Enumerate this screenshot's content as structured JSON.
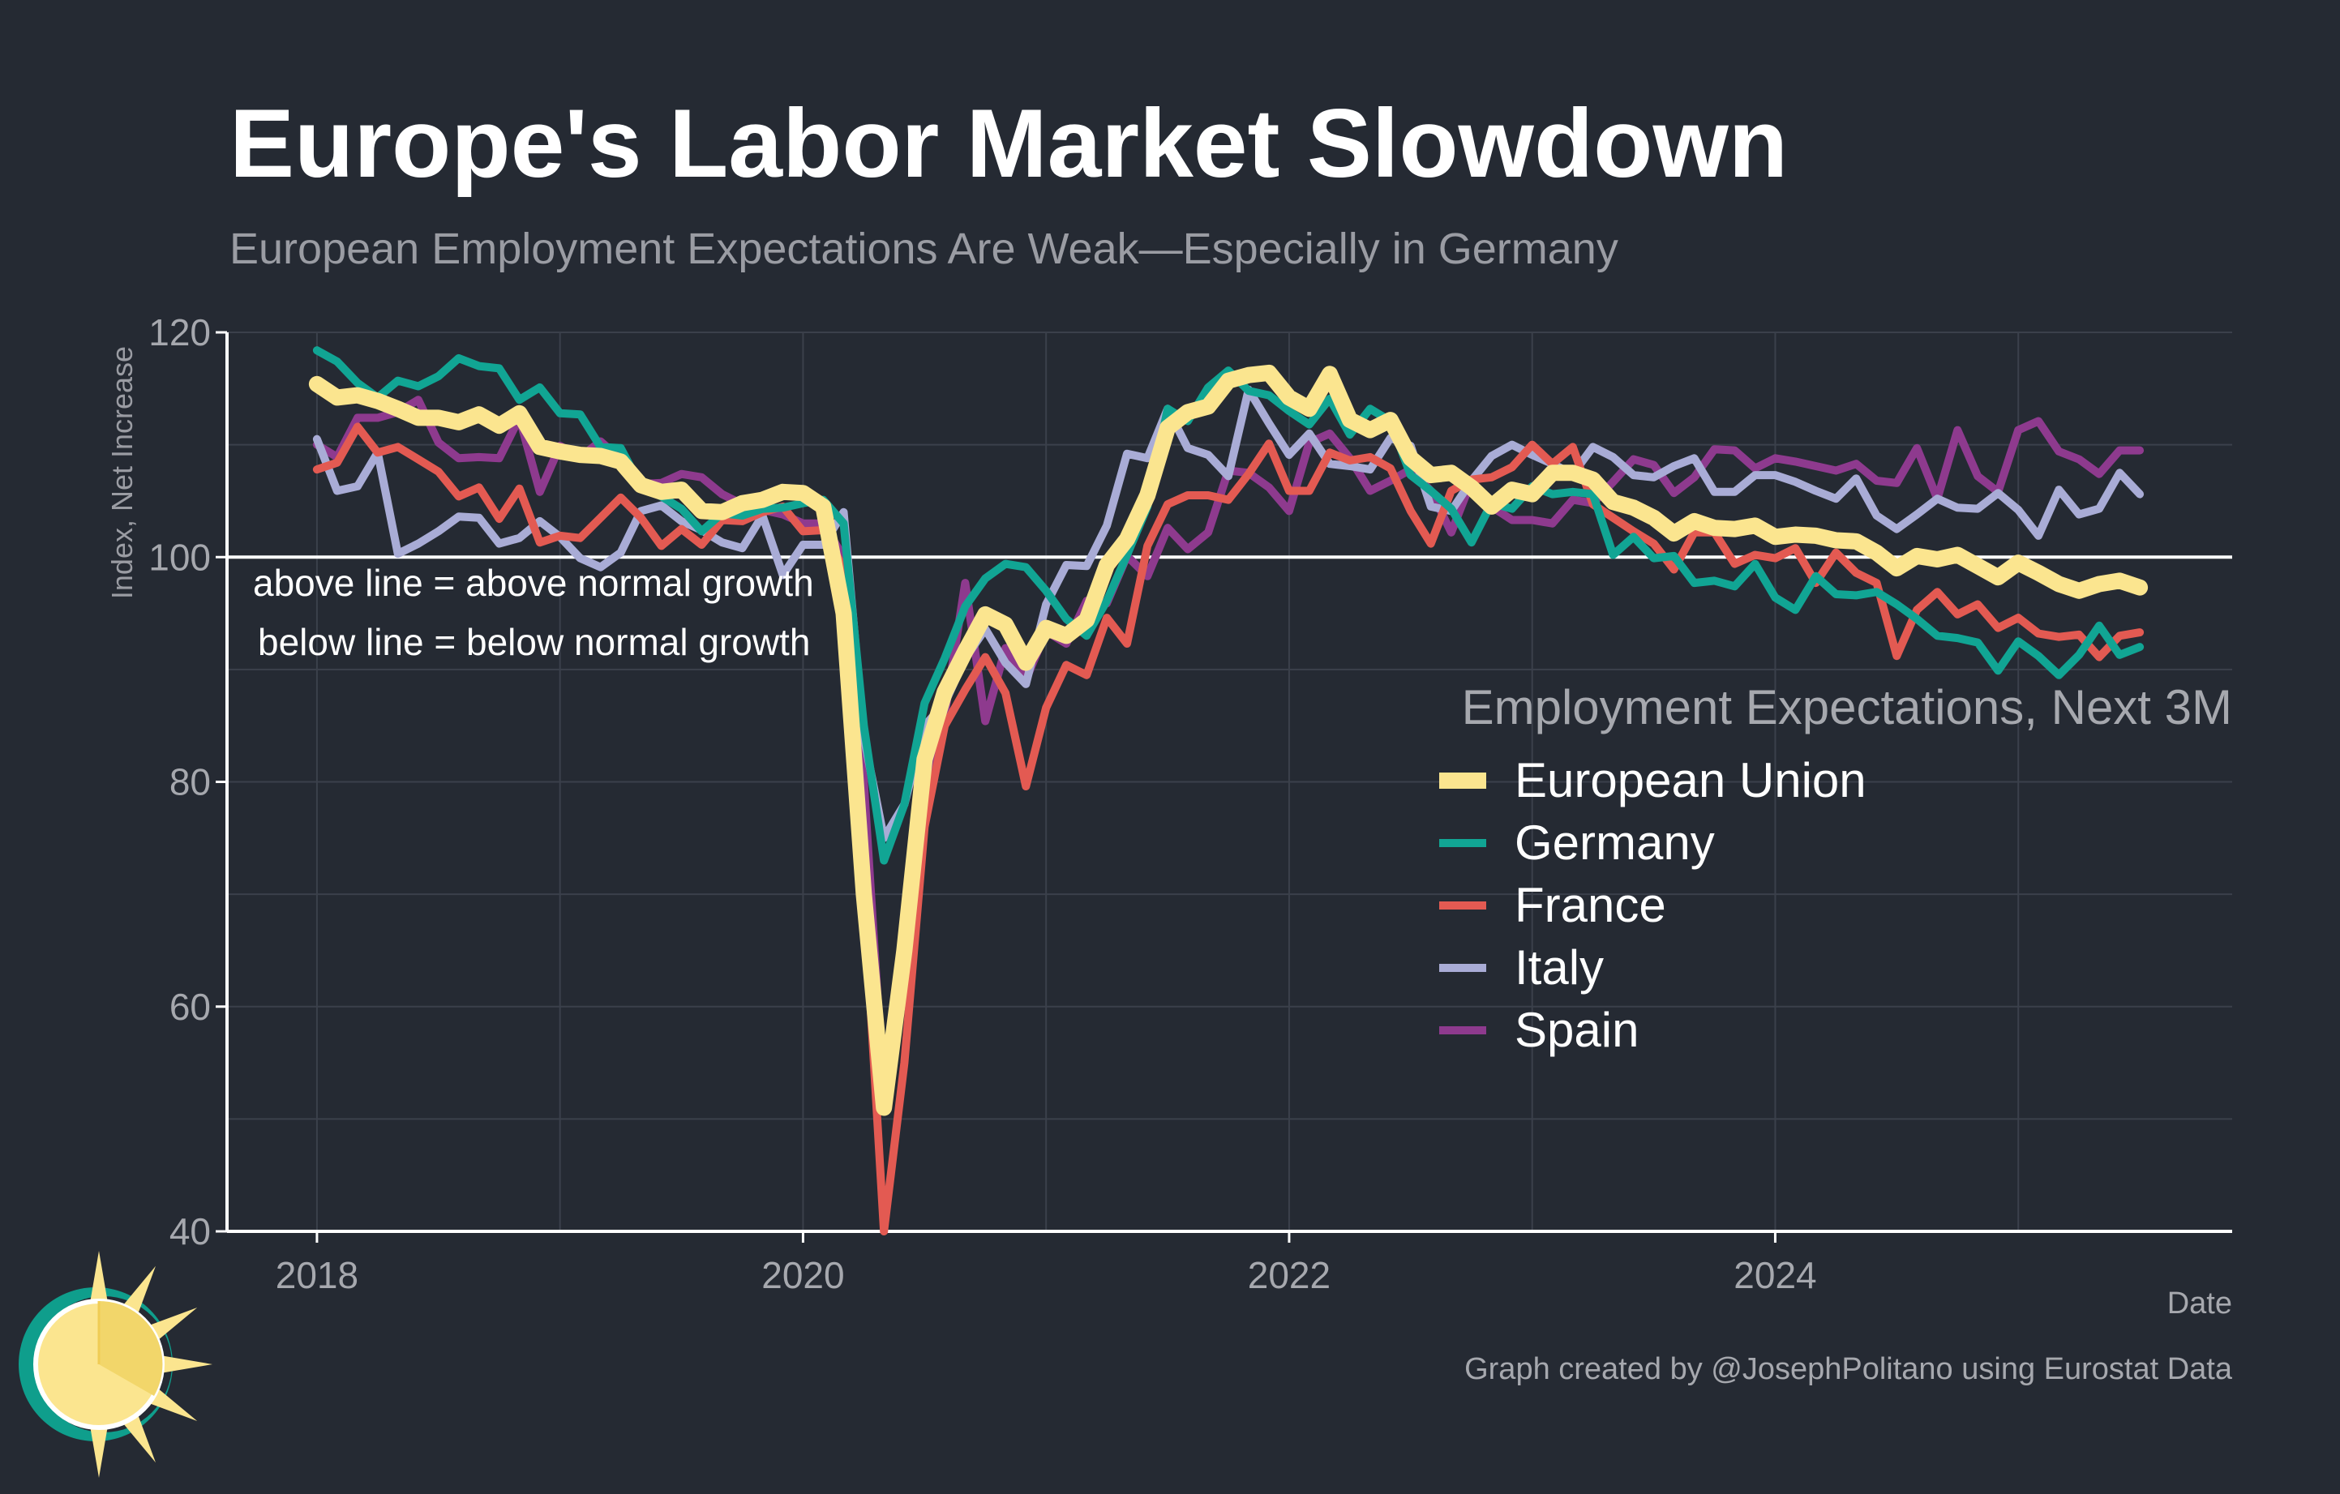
{
  "chart_data": {
    "type": "line",
    "title": "Europe's Labor Market Slowdown",
    "subtitle": "European Employment Expectations Are Weak—Especially in Germany",
    "xlabel": "Date",
    "ylabel": "Index, Net Increase",
    "xlim": [
      2017.63,
      2025.88
    ],
    "ylim": [
      40,
      120
    ],
    "x_ticks": [
      2018,
      2020,
      2022,
      2024
    ],
    "x_tick_labels": [
      "2018",
      "2020",
      "2022",
      "2024"
    ],
    "y_ticks": [
      40,
      60,
      80,
      100,
      120
    ],
    "y_tick_labels": [
      "40",
      "60",
      "80",
      "100",
      "120"
    ],
    "grid": true,
    "reference_line": {
      "y": 100
    },
    "annotations": [
      "above line = above normal growth",
      "below line = below normal growth"
    ],
    "legend": {
      "title": "Employment Expectations, Next 3M",
      "placement": "right"
    },
    "caption": "Graph created by @JosephPolitano using Eurostat Data",
    "x": [
      2018.0,
      2018.083,
      2018.167,
      2018.25,
      2018.333,
      2018.417,
      2018.5,
      2018.583,
      2018.667,
      2018.75,
      2018.833,
      2018.917,
      2019.0,
      2019.083,
      2019.167,
      2019.25,
      2019.333,
      2019.417,
      2019.5,
      2019.583,
      2019.667,
      2019.75,
      2019.833,
      2019.917,
      2020.0,
      2020.083,
      2020.167,
      2020.25,
      2020.333,
      2020.417,
      2020.5,
      2020.583,
      2020.667,
      2020.75,
      2020.833,
      2020.917,
      2021.0,
      2021.083,
      2021.167,
      2021.25,
      2021.333,
      2021.417,
      2021.5,
      2021.583,
      2021.667,
      2021.75,
      2021.833,
      2021.917,
      2022.0,
      2022.083,
      2022.167,
      2022.25,
      2022.333,
      2022.417,
      2022.5,
      2022.583,
      2022.667,
      2022.75,
      2022.833,
      2022.917,
      2023.0,
      2023.083,
      2023.167,
      2023.25,
      2023.333,
      2023.417,
      2023.5,
      2023.583,
      2023.667,
      2023.75,
      2023.833,
      2023.917,
      2024.0,
      2024.083,
      2024.167,
      2024.25,
      2024.333,
      2024.417,
      2024.5,
      2024.583,
      2024.667,
      2024.75,
      2024.833,
      2024.917,
      2025.0,
      2025.083,
      2025.167,
      2025.25,
      2025.333,
      2025.417,
      2025.5
    ],
    "series": [
      {
        "name": "Spain",
        "color": "#8e3a8e",
        "values": [
          110.0,
          108.9,
          112.4,
          112.4,
          112.9,
          114.0,
          110.2,
          108.8,
          108.9,
          108.8,
          112.4,
          105.8,
          109.9,
          108.9,
          110.3,
          108.7,
          106.5,
          106.6,
          107.4,
          107.1,
          105.6,
          104.7,
          104.2,
          103.8,
          103.0,
          103.0,
          100.0,
          80.0,
          52.0,
          63.0,
          79.9,
          86.0,
          97.7,
          85.4,
          91.9,
          89.1,
          93.4,
          92.3,
          96.1,
          95.9,
          100.1,
          98.3,
          102.6,
          100.7,
          102.2,
          107.7,
          107.5,
          106.2,
          104.1,
          110.2,
          111.0,
          108.8,
          105.9,
          106.8,
          107.8,
          105.9,
          102.2,
          106.8,
          104.5,
          103.3,
          103.3,
          103.0,
          105.1,
          104.8,
          106.7,
          108.7,
          108.2,
          105.7,
          107.1,
          109.6,
          109.5,
          107.9,
          108.8,
          108.5,
          108.1,
          107.7,
          108.3,
          106.8,
          106.6,
          109.7,
          105.2,
          111.3,
          107.2,
          105.8,
          111.3,
          112.1,
          109.4,
          108.7,
          107.4,
          109.5,
          109.5
        ]
      },
      {
        "name": "Italy",
        "color": "#a9acd6",
        "values": [
          110.5,
          105.9,
          106.3,
          109.3,
          100.3,
          101.2,
          102.3,
          103.6,
          103.5,
          101.2,
          101.7,
          103.2,
          101.8,
          99.9,
          99.1,
          100.4,
          104.1,
          104.6,
          103.2,
          102.4,
          101.3,
          100.8,
          103.7,
          98.4,
          101.1,
          101.1,
          104.0,
          84.0,
          75.0,
          78.0,
          85.0,
          87.0,
          91.0,
          93.6,
          90.6,
          88.7,
          95.8,
          99.3,
          99.2,
          102.8,
          109.2,
          108.8,
          113.2,
          109.7,
          109.1,
          107.2,
          114.9,
          111.9,
          109.1,
          111.0,
          108.3,
          108.1,
          107.8,
          110.6,
          109.9,
          104.5,
          104.1,
          106.8,
          109.0,
          110.0,
          109.1,
          108.3,
          107.4,
          109.8,
          108.9,
          107.3,
          107.1,
          108.1,
          108.8,
          105.8,
          105.8,
          107.3,
          107.3,
          106.7,
          105.9,
          105.2,
          107.0,
          103.7,
          102.5,
          103.8,
          105.2,
          104.4,
          104.3,
          105.7,
          104.2,
          101.9,
          106.0,
          103.8,
          104.3,
          107.5,
          105.6
        ]
      },
      {
        "name": "France",
        "color": "#e35a52",
        "values": [
          107.8,
          108.4,
          111.6,
          109.3,
          109.8,
          108.7,
          107.6,
          105.4,
          106.2,
          103.4,
          106.1,
          101.3,
          101.9,
          101.7,
          103.5,
          105.3,
          103.5,
          101.0,
          102.5,
          101.1,
          103.3,
          103.2,
          104.0,
          104.5,
          102.3,
          102.4,
          99.0,
          70.0,
          40.0,
          55.0,
          76.0,
          85.0,
          88.2,
          91.1,
          87.9,
          79.6,
          86.6,
          90.4,
          89.5,
          94.6,
          92.3,
          101.0,
          104.7,
          105.5,
          105.5,
          105.1,
          107.4,
          110.1,
          105.9,
          105.9,
          109.3,
          108.6,
          108.9,
          107.9,
          104.1,
          101.2,
          105.9,
          106.9,
          107.1,
          108.0,
          110.0,
          108.3,
          109.8,
          104.7,
          103.5,
          102.3,
          101.2,
          98.9,
          102.2,
          102.2,
          99.4,
          100.2,
          99.9,
          100.8,
          97.7,
          100.4,
          98.6,
          97.7,
          91.2,
          95.3,
          96.9,
          94.9,
          95.8,
          93.7,
          94.6,
          93.2,
          92.9,
          93.1,
          91.1,
          93.0,
          93.3
        ]
      },
      {
        "name": "Germany",
        "color": "#11a594",
        "values": [
          118.4,
          117.4,
          115.5,
          114.2,
          115.7,
          115.2,
          116.1,
          117.7,
          117.0,
          116.8,
          114.0,
          115.1,
          112.8,
          112.7,
          109.8,
          109.7,
          106.3,
          105.4,
          104.3,
          102.3,
          103.9,
          103.7,
          104.3,
          104.4,
          104.8,
          105.1,
          103.0,
          85.0,
          73.0,
          78.0,
          87.0,
          91.0,
          95.6,
          98.1,
          99.4,
          99.1,
          97.0,
          94.5,
          93.0,
          96.1,
          100.2,
          104.5,
          113.2,
          112.1,
          115.1,
          116.6,
          114.8,
          114.4,
          113.0,
          111.8,
          114.1,
          110.9,
          113.2,
          112.1,
          107.3,
          105.9,
          104.3,
          101.3,
          104.8,
          104.3,
          106.3,
          105.6,
          105.8,
          105.6,
          100.2,
          101.8,
          99.9,
          100.1,
          97.7,
          97.9,
          97.4,
          99.4,
          96.4,
          95.3,
          98.3,
          96.7,
          96.6,
          96.9,
          95.8,
          94.5,
          93.0,
          92.8,
          92.4,
          89.9,
          92.5,
          91.2,
          89.5,
          91.3,
          93.9,
          91.3,
          92.0
        ]
      },
      {
        "name": "European Union",
        "color": "#fbe58f",
        "values": [
          115.4,
          114.2,
          114.4,
          113.9,
          113.2,
          112.4,
          112.4,
          112.0,
          112.7,
          111.7,
          112.8,
          109.8,
          109.4,
          109.1,
          109.0,
          108.5,
          106.4,
          105.8,
          106.0,
          104.1,
          104.0,
          104.8,
          105.1,
          105.8,
          105.7,
          104.5,
          95.0,
          70.0,
          51.0,
          65.0,
          82.0,
          88.0,
          91.6,
          94.9,
          94.0,
          90.6,
          93.7,
          93.0,
          94.4,
          99.3,
          101.6,
          105.5,
          111.5,
          112.9,
          113.4,
          115.7,
          116.2,
          116.4,
          114.2,
          113.2,
          116.3,
          112.2,
          111.3,
          112.2,
          108.8,
          107.3,
          107.5,
          106.2,
          104.5,
          106.0,
          105.6,
          107.5,
          107.5,
          106.9,
          104.9,
          104.4,
          103.5,
          102.1,
          103.2,
          102.6,
          102.5,
          102.8,
          101.8,
          102.0,
          101.9,
          101.5,
          101.4,
          100.4,
          99.0,
          100.1,
          99.8,
          100.2,
          99.2,
          98.2,
          99.5,
          98.6,
          97.6,
          97.0,
          97.6,
          97.9,
          97.3
        ]
      }
    ]
  }
}
